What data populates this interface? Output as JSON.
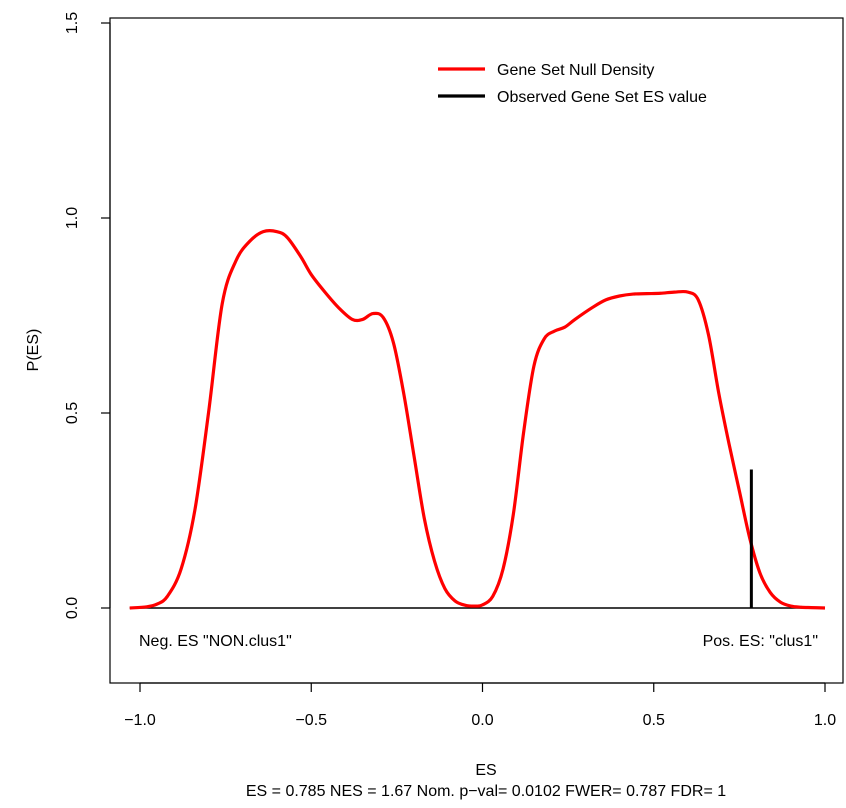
{
  "chart_data": {
    "type": "line",
    "xlabel": "ES",
    "ylabel": "P(ES)",
    "subtitle": "ES = 0.785  NES = 1.67 Nom. p−val= 0.0102 FWER= 0.787 FDR= 1",
    "xlim": [
      -1.1,
      1.1
    ],
    "ylim": [
      -0.2,
      1.5
    ],
    "x_ticks": [
      -1.0,
      -0.5,
      0.0,
      0.5,
      1.0
    ],
    "x_tick_labels": [
      "−1.0",
      "−0.5",
      "0.0",
      "0.5",
      "1.0"
    ],
    "y_ticks": [
      0.0,
      0.5,
      1.0,
      1.5
    ],
    "y_tick_labels": [
      "0.0",
      "0.5",
      "1.0",
      "1.5"
    ],
    "legend": {
      "position": "top-right",
      "entries": [
        {
          "label": "Gene Set Null Density",
          "color": "#ff0000"
        },
        {
          "label": "Observed Gene Set ES value",
          "color": "#000000"
        }
      ]
    },
    "annotations": {
      "neg_label": "Neg. ES \"NON.clus1\"",
      "pos_label": "Pos. ES: \"clus1\""
    },
    "baseline": 0.0,
    "series": [
      {
        "name": "Gene Set Null Density",
        "color": "#ff0000",
        "x": [
          -1.03,
          -0.98,
          -0.95,
          -0.92,
          -0.88,
          -0.84,
          -0.8,
          -0.76,
          -0.72,
          -0.68,
          -0.64,
          -0.6,
          -0.57,
          -0.53,
          -0.5,
          -0.46,
          -0.42,
          -0.38,
          -0.35,
          -0.32,
          -0.29,
          -0.26,
          -0.23,
          -0.2,
          -0.17,
          -0.14,
          -0.11,
          -0.08,
          -0.05,
          -0.02,
          0.0,
          0.03,
          0.06,
          0.09,
          0.12,
          0.15,
          0.18,
          0.21,
          0.24,
          0.27,
          0.32,
          0.36,
          0.4,
          0.44,
          0.48,
          0.52,
          0.56,
          0.6,
          0.63,
          0.66,
          0.69,
          0.72,
          0.75,
          0.78,
          0.81,
          0.84,
          0.87,
          0.9,
          0.93,
          0.96,
          1.0
        ],
        "y": [
          0.0,
          0.003,
          0.01,
          0.03,
          0.1,
          0.25,
          0.5,
          0.78,
          0.89,
          0.94,
          0.965,
          0.965,
          0.95,
          0.9,
          0.855,
          0.81,
          0.77,
          0.74,
          0.74,
          0.755,
          0.745,
          0.68,
          0.55,
          0.39,
          0.23,
          0.12,
          0.05,
          0.018,
          0.007,
          0.005,
          0.008,
          0.03,
          0.1,
          0.24,
          0.45,
          0.62,
          0.69,
          0.71,
          0.72,
          0.74,
          0.77,
          0.79,
          0.8,
          0.805,
          0.806,
          0.807,
          0.81,
          0.81,
          0.79,
          0.7,
          0.55,
          0.42,
          0.3,
          0.18,
          0.09,
          0.04,
          0.015,
          0.005,
          0.002,
          0.001,
          0.0
        ]
      },
      {
        "name": "Observed Gene Set ES value",
        "color": "#000000",
        "x": [
          0.785,
          0.785
        ],
        "y": [
          0.0,
          0.355
        ]
      }
    ]
  }
}
